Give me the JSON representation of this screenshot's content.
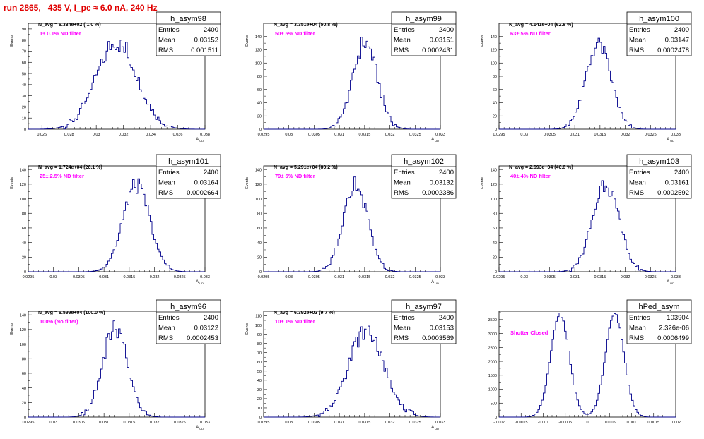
{
  "header": {
    "title": "run 2865,   435 V, I_pe ≈ 6.0 nA, 240 Hz"
  },
  "chart_data": [
    {
      "type": "histogram",
      "name": "h_asym98",
      "title_left": "N_avg = 6.334e+02 ( 1.0 %)",
      "filter_label": "1± 0.1% ND filter",
      "stats": {
        "entries_label": "Entries",
        "entries": "2400",
        "mean_label": "Mean",
        "mean": "0.03152",
        "rms_label": "RMS",
        "rms": "0.001511"
      },
      "ylabel": "Events",
      "xlabel": "A_UD",
      "xlim": [
        0.025,
        0.038
      ],
      "ylim": [
        0,
        95
      ],
      "xticks": [
        0.026,
        0.028,
        0.03,
        0.032,
        0.034,
        0.036,
        0.038
      ],
      "xtick_labels": [
        "0.026",
        "0.028",
        "0.03",
        "0.032",
        "0.034",
        "0.036",
        "0.038"
      ],
      "yticks": [
        0,
        10,
        20,
        30,
        40,
        50,
        60,
        70,
        80,
        90
      ],
      "mean_value": 0.03152,
      "rms_value": 0.001511,
      "peak": 92,
      "shape": "single"
    },
    {
      "type": "histogram",
      "name": "h_asym99",
      "title_left": "N_avg = 3.351e+04 (50.8 %)",
      "filter_label": "50± 5% ND filter",
      "stats": {
        "entries_label": "Entries",
        "entries": "2400",
        "mean_label": "Mean",
        "mean": "0.03151",
        "rms_label": "RMS",
        "rms": "0.0002431"
      },
      "ylabel": "Events",
      "xlabel": "A_UD",
      "xlim": [
        0.0295,
        0.033
      ],
      "ylim": [
        0,
        160
      ],
      "xticks": [
        0.0295,
        0.03,
        0.0305,
        0.031,
        0.0315,
        0.032,
        0.0325,
        0.033
      ],
      "xtick_labels": [
        "0.0295",
        "0.03",
        "0.0305",
        "0.031",
        "0.0315",
        "0.032",
        "0.0325",
        "0.033"
      ],
      "yticks": [
        0,
        20,
        40,
        60,
        80,
        100,
        120,
        140
      ],
      "mean_value": 0.03151,
      "rms_value": 0.0002431,
      "peak": 153,
      "shape": "single"
    },
    {
      "type": "histogram",
      "name": "h_asym100",
      "title_left": "N_avg = 4.141e+04 (62.8 %)",
      "filter_label": "63± 5% ND filter",
      "stats": {
        "entries_label": "Entries",
        "entries": "2400",
        "mean_label": "Mean",
        "mean": "0.03147",
        "rms_label": "RMS",
        "rms": "0.0002478"
      },
      "ylabel": "Events",
      "xlabel": "A_UD",
      "xlim": [
        0.0295,
        0.033
      ],
      "ylim": [
        0,
        160
      ],
      "xticks": [
        0.0295,
        0.03,
        0.0305,
        0.031,
        0.0315,
        0.032,
        0.0325,
        0.033
      ],
      "xtick_labels": [
        "0.0295",
        "0.03",
        "0.0305",
        "0.031",
        "0.0315",
        "0.032",
        "0.0325",
        "0.033"
      ],
      "yticks": [
        0,
        20,
        40,
        60,
        80,
        100,
        120,
        140
      ],
      "mean_value": 0.03147,
      "rms_value": 0.0002478,
      "peak": 150,
      "shape": "single"
    },
    {
      "type": "histogram",
      "name": "h_asym101",
      "title_left": "N_avg = 1.724e+04 (26.1 %)",
      "filter_label": "25± 2.5% ND filter",
      "stats": {
        "entries_label": "Entries",
        "entries": "2400",
        "mean_label": "Mean",
        "mean": "0.03164",
        "rms_label": "RMS",
        "rms": "0.0002664"
      },
      "ylabel": "Events",
      "xlabel": "A_UD",
      "xlim": [
        0.0295,
        0.033
      ],
      "ylim": [
        0,
        145
      ],
      "xticks": [
        0.0295,
        0.03,
        0.0305,
        0.031,
        0.0315,
        0.032,
        0.0325,
        0.033
      ],
      "xtick_labels": [
        "0.0295",
        "0.03",
        "0.0305",
        "0.031",
        "0.0315",
        "0.032",
        "0.0325",
        "0.033"
      ],
      "yticks": [
        0,
        20,
        40,
        60,
        80,
        100,
        120,
        140
      ],
      "mean_value": 0.03164,
      "rms_value": 0.0002664,
      "peak": 138,
      "shape": "single"
    },
    {
      "type": "histogram",
      "name": "h_asym102",
      "title_left": "N_avg = 5.291e+04 (80.2 %)",
      "filter_label": "79± 5% ND filter",
      "stats": {
        "entries_label": "Entries",
        "entries": "2400",
        "mean_label": "Mean",
        "mean": "0.03132",
        "rms_label": "RMS",
        "rms": "0.0002386"
      },
      "ylabel": "Events",
      "xlabel": "A_UD",
      "xlim": [
        0.0295,
        0.033
      ],
      "ylim": [
        0,
        145
      ],
      "xticks": [
        0.0295,
        0.03,
        0.0305,
        0.031,
        0.0315,
        0.032,
        0.0325,
        0.033
      ],
      "xtick_labels": [
        "0.0295",
        "0.03",
        "0.0305",
        "0.031",
        "0.0315",
        "0.032",
        "0.0325",
        "0.033"
      ],
      "yticks": [
        0,
        20,
        40,
        60,
        80,
        100,
        120,
        140
      ],
      "mean_value": 0.03132,
      "rms_value": 0.0002386,
      "peak": 143,
      "shape": "single"
    },
    {
      "type": "histogram",
      "name": "h_asym103",
      "title_left": "N_avg = 2.693e+04 (40.8 %)",
      "filter_label": "40± 4% ND filter",
      "stats": {
        "entries_label": "Entries",
        "entries": "2400",
        "mean_label": "Mean",
        "mean": "0.03161",
        "rms_label": "RMS",
        "rms": "0.0002592"
      },
      "ylabel": "Events",
      "xlabel": "A_UD",
      "xlim": [
        0.0295,
        0.033
      ],
      "ylim": [
        0,
        145
      ],
      "xticks": [
        0.0295,
        0.03,
        0.0305,
        0.031,
        0.0315,
        0.032,
        0.0325,
        0.033
      ],
      "xtick_labels": [
        "0.0295",
        "0.03",
        "0.0305",
        "0.031",
        "0.0315",
        "0.032",
        "0.0325",
        "0.033"
      ],
      "yticks": [
        0,
        20,
        40,
        60,
        80,
        100,
        120,
        140
      ],
      "mean_value": 0.03161,
      "rms_value": 0.0002592,
      "peak": 143,
      "shape": "single"
    },
    {
      "type": "histogram",
      "name": "h_asym96",
      "title_left": "N_avg = 6.599e+04 (100.0 %)",
      "filter_label": "100% (No filter)",
      "stats": {
        "entries_label": "Entries",
        "entries": "2400",
        "mean_label": "Mean",
        "mean": "0.03122",
        "rms_label": "RMS",
        "rms": "0.0002453"
      },
      "ylabel": "Events",
      "xlabel": "A_UD",
      "xlim": [
        0.0295,
        0.033
      ],
      "ylim": [
        0,
        145
      ],
      "xticks": [
        0.0295,
        0.03,
        0.0305,
        0.031,
        0.0315,
        0.032,
        0.0325,
        0.033
      ],
      "xtick_labels": [
        "0.0295",
        "0.03",
        "0.0305",
        "0.031",
        "0.0315",
        "0.032",
        "0.0325",
        "0.033"
      ],
      "yticks": [
        0,
        20,
        40,
        60,
        80,
        100,
        120,
        140
      ],
      "mean_value": 0.03122,
      "rms_value": 0.0002453,
      "peak": 142,
      "shape": "single"
    },
    {
      "type": "histogram",
      "name": "h_asym97",
      "title_left": "N_avg = 6.392e+03 (9.7 %)",
      "filter_label": "10± 1% ND filter",
      "stats": {
        "entries_label": "Entries",
        "entries": "2400",
        "mean_label": "Mean",
        "mean": "0.03153",
        "rms_label": "RMS",
        "rms": "0.0003569"
      },
      "ylabel": "Events",
      "xlabel": "A_UD",
      "xlim": [
        0.0295,
        0.033
      ],
      "ylim": [
        0,
        115
      ],
      "xticks": [
        0.0295,
        0.03,
        0.0305,
        0.031,
        0.0315,
        0.032,
        0.0325,
        0.033
      ],
      "xtick_labels": [
        "0.0295",
        "0.03",
        "0.0305",
        "0.031",
        "0.0315",
        "0.032",
        "0.0325",
        "0.033"
      ],
      "yticks": [
        0,
        10,
        20,
        30,
        40,
        50,
        60,
        70,
        80,
        90,
        100,
        110
      ],
      "mean_value": 0.03153,
      "rms_value": 0.0003569,
      "peak": 110,
      "shape": "single"
    },
    {
      "type": "histogram",
      "name": "hPed_asym",
      "title_left": "",
      "filter_label": "Shutter Closed",
      "stats": {
        "entries_label": "Entries",
        "entries": "103904",
        "mean_label": "Mean",
        "mean": "2.326e-06",
        "rms_label": "RMS",
        "rms": "0.0006499"
      },
      "ylabel": "",
      "xlabel": "",
      "xlim": [
        -0.002,
        0.002
      ],
      "ylim": [
        0,
        3800
      ],
      "xticks": [
        -0.002,
        -0.0015,
        -0.001,
        -0.0005,
        0,
        0.0005,
        0.001,
        0.0015,
        0.002
      ],
      "xtick_labels": [
        "-0.002",
        "-0.0015",
        "-0.001",
        "-0.0005",
        "0",
        "0.0005",
        "0.001",
        "0.0015",
        "0.002"
      ],
      "yticks": [
        0,
        500,
        1000,
        1500,
        2000,
        2500,
        3000,
        3500
      ],
      "mean_value": 2.3e-06,
      "rms_value": 0.0006499,
      "peak": 3700,
      "shape": "double",
      "peak_positions": [
        -0.00062,
        0.00062
      ],
      "peak_width": 0.00021
    }
  ],
  "colors": {
    "histogram": "#00008b",
    "annotation": "#ff00ff",
    "title": "#e00000"
  }
}
